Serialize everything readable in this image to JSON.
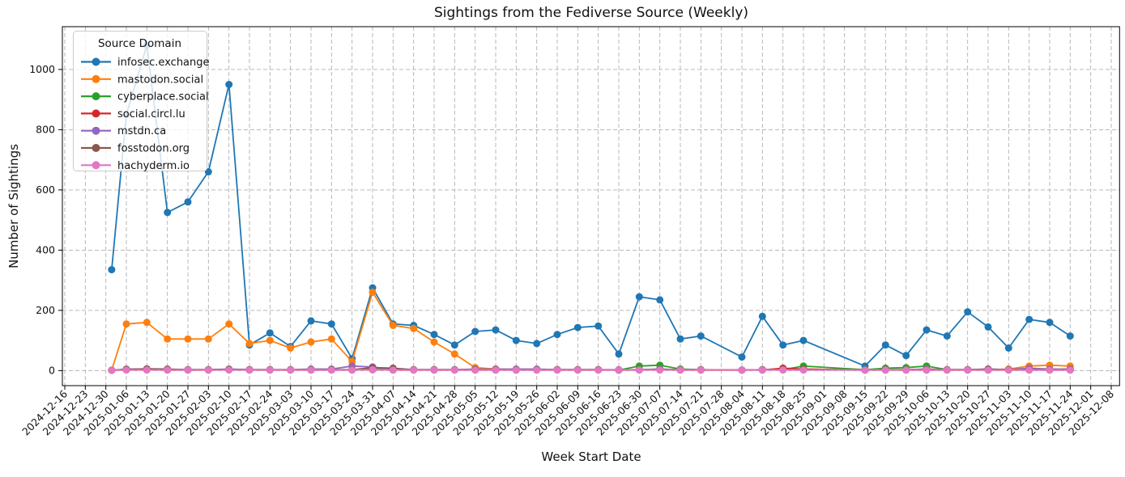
{
  "chart_data": {
    "type": "line",
    "title": "Sightings from the Fediverse Source (Weekly)",
    "xlabel": "Week Start Date",
    "ylabel": "Number of Sightings",
    "legend_title": "Source Domain",
    "legend_position": "upper left",
    "grid": true,
    "y_ticks": [
      0,
      200,
      400,
      600,
      800,
      1000
    ],
    "ylim": [
      -50,
      1142
    ],
    "x_axis_start": "2024-12-16",
    "x_tick_labels": [
      "2024-12-16",
      "2024-12-23",
      "2024-12-30",
      "2025-01-06",
      "2025-01-13",
      "2025-01-20",
      "2025-01-27",
      "2025-02-03",
      "2025-02-10",
      "2025-02-17",
      "2025-02-24",
      "2025-03-03",
      "2025-03-10",
      "2025-03-17",
      "2025-03-24",
      "2025-03-31",
      "2025-04-07",
      "2025-04-14",
      "2025-04-21",
      "2025-04-28",
      "2025-05-05",
      "2025-05-12",
      "2025-05-19",
      "2025-05-26",
      "2025-06-02",
      "2025-06-09",
      "2025-06-16",
      "2025-06-23",
      "2025-06-30",
      "2025-07-07",
      "2025-07-14",
      "2025-07-21",
      "2025-07-28",
      "2025-08-04",
      "2025-08-11",
      "2025-08-18",
      "2025-08-25",
      "2025-09-01",
      "2025-09-08",
      "2025-09-15",
      "2025-09-22",
      "2025-09-29",
      "2025-10-06",
      "2025-10-13",
      "2025-10-20",
      "2025-10-27",
      "2025-11-03",
      "2025-11-10",
      "2025-11-17",
      "2025-11-24",
      "2025-12-01",
      "2025-12-08"
    ],
    "point_dates": [
      "2025-01-01",
      "2025-01-06",
      "2025-01-13",
      "2025-01-20",
      "2025-01-27",
      "2025-02-03",
      "2025-02-10",
      "2025-02-17",
      "2025-02-24",
      "2025-03-03",
      "2025-03-10",
      "2025-03-17",
      "2025-03-24",
      "2025-03-31",
      "2025-04-07",
      "2025-04-14",
      "2025-04-21",
      "2025-04-28",
      "2025-05-05",
      "2025-05-12",
      "2025-05-19",
      "2025-05-26",
      "2025-06-02",
      "2025-06-09",
      "2025-06-16",
      "2025-06-23",
      "2025-06-30",
      "2025-07-07",
      "2025-07-14",
      "2025-07-21",
      "2025-08-04",
      "2025-08-11",
      "2025-08-18",
      "2025-08-25",
      "2025-09-15",
      "2025-09-22",
      "2025-09-29",
      "2025-10-06",
      "2025-10-13",
      "2025-10-20",
      "2025-10-27",
      "2025-11-03",
      "2025-11-10",
      "2025-11-17",
      "2025-11-24"
    ],
    "series": [
      {
        "name": "infosec.exchange",
        "color": "#1f77b4",
        "values": [
          335,
          850,
          1080,
          525,
          560,
          660,
          950,
          85,
          125,
          80,
          165,
          155,
          40,
          275,
          155,
          150,
          120,
          85,
          130,
          135,
          100,
          90,
          120,
          143,
          148,
          55,
          245,
          235,
          105,
          115,
          45,
          180,
          85,
          100,
          15,
          85,
          50,
          135,
          115,
          195,
          145,
          75,
          170,
          160,
          115
        ]
      },
      {
        "name": "mastodon.social",
        "color": "#ff7f0e",
        "values": [
          2,
          155,
          160,
          105,
          105,
          105,
          155,
          90,
          100,
          75,
          95,
          105,
          30,
          260,
          150,
          140,
          95,
          55,
          10,
          5,
          3,
          3,
          3,
          3,
          3,
          2,
          3,
          5,
          3,
          2,
          2,
          3,
          3,
          5,
          2,
          3,
          3,
          5,
          3,
          3,
          3,
          5,
          15,
          18,
          15
        ]
      },
      {
        "name": "cyberplace.social",
        "color": "#2ca02c",
        "values": [
          1,
          3,
          4,
          3,
          3,
          3,
          4,
          3,
          3,
          2,
          3,
          3,
          3,
          5,
          3,
          3,
          3,
          3,
          3,
          3,
          3,
          3,
          3,
          3,
          3,
          2,
          15,
          18,
          5,
          3,
          2,
          3,
          3,
          15,
          3,
          8,
          10,
          15,
          3,
          3,
          3,
          3,
          3,
          3,
          5
        ]
      },
      {
        "name": "social.circl.lu",
        "color": "#d62728",
        "values": [
          1,
          3,
          3,
          2,
          2,
          2,
          3,
          2,
          2,
          2,
          2,
          2,
          2,
          3,
          2,
          2,
          2,
          2,
          2,
          2,
          2,
          2,
          2,
          2,
          2,
          2,
          2,
          3,
          2,
          2,
          2,
          2,
          8,
          5,
          2,
          2,
          2,
          2,
          2,
          2,
          2,
          2,
          2,
          2,
          2
        ]
      },
      {
        "name": "mstdn.ca",
        "color": "#9467bd",
        "values": [
          1,
          5,
          5,
          3,
          3,
          3,
          5,
          3,
          3,
          3,
          5,
          5,
          15,
          12,
          3,
          3,
          3,
          3,
          5,
          5,
          5,
          5,
          3,
          3,
          3,
          3,
          3,
          5,
          3,
          3,
          2,
          3,
          3,
          3,
          2,
          3,
          3,
          5,
          3,
          3,
          5,
          3,
          8,
          5,
          5
        ]
      },
      {
        "name": "fosstodon.org",
        "color": "#8c564b",
        "values": [
          1,
          4,
          6,
          5,
          3,
          3,
          4,
          3,
          3,
          3,
          3,
          3,
          3,
          10,
          8,
          3,
          3,
          3,
          3,
          3,
          3,
          3,
          3,
          3,
          3,
          2,
          3,
          3,
          3,
          3,
          2,
          3,
          3,
          3,
          2,
          3,
          3,
          3,
          3,
          3,
          5,
          3,
          3,
          3,
          3
        ]
      },
      {
        "name": "hachyderm.io",
        "color": "#e377c2",
        "values": [
          1,
          2,
          2,
          2,
          2,
          2,
          2,
          2,
          2,
          2,
          2,
          2,
          2,
          3,
          2,
          2,
          2,
          2,
          2,
          2,
          2,
          2,
          2,
          2,
          2,
          2,
          2,
          2,
          2,
          2,
          2,
          2,
          2,
          2,
          2,
          2,
          2,
          2,
          2,
          2,
          2,
          2,
          2,
          2,
          2
        ]
      }
    ]
  }
}
